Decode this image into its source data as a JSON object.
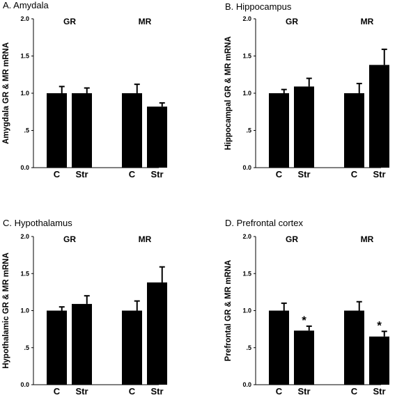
{
  "chart_data": [
    {
      "type": "bar",
      "title": "A. Amydala",
      "ylabel": "Amygdala GR & MR mRNA",
      "ylim": [
        0,
        2.0
      ],
      "yticks": [
        "0.0",
        ".5",
        "1.0",
        "1.5",
        "2.0"
      ],
      "groups": [
        "GR",
        "MR"
      ],
      "categories": [
        "C",
        "Str",
        "C",
        "Str"
      ],
      "values": [
        1.0,
        1.0,
        1.0,
        0.82
      ],
      "errors": [
        0.09,
        0.07,
        0.12,
        0.05
      ],
      "significance": [
        "",
        "",
        "",
        ""
      ]
    },
    {
      "type": "bar",
      "title": "B. Hippocampus",
      "ylabel": "Hippocampal GR & MR mRNA",
      "ylim": [
        0,
        2.0
      ],
      "yticks": [
        "0.0",
        ".5",
        "1.0",
        "1.5",
        "2.0"
      ],
      "groups": [
        "GR",
        "MR"
      ],
      "categories": [
        "C",
        "Str",
        "C",
        "Str"
      ],
      "values": [
        1.0,
        1.09,
        1.0,
        1.38
      ],
      "errors": [
        0.05,
        0.11,
        0.13,
        0.21
      ],
      "significance": [
        "",
        "",
        "",
        ""
      ]
    },
    {
      "type": "bar",
      "title": "C. Hypothalamus",
      "ylabel": "Hypothalamic GR & MR mRNA",
      "ylim": [
        0,
        2.0
      ],
      "yticks": [
        "0.0",
        ".5",
        "1.0",
        "1.5",
        "2.0"
      ],
      "groups": [
        "GR",
        "MR"
      ],
      "categories": [
        "C",
        "Str",
        "C",
        "Str"
      ],
      "values": [
        1.0,
        1.09,
        1.0,
        1.38
      ],
      "errors": [
        0.05,
        0.11,
        0.13,
        0.21
      ],
      "significance": [
        "",
        "",
        "",
        ""
      ]
    },
    {
      "type": "bar",
      "title": "D. Prefrontal cortex",
      "ylabel": "Prefrontal GR & MR mRNA",
      "ylim": [
        0,
        2.0
      ],
      "yticks": [
        "0.0",
        ".5",
        "1.0",
        "1.5",
        "2.0"
      ],
      "groups": [
        "GR",
        "MR"
      ],
      "categories": [
        "C",
        "Str",
        "C",
        "Str"
      ],
      "values": [
        1.0,
        0.73,
        1.0,
        0.65
      ],
      "errors": [
        0.1,
        0.06,
        0.12,
        0.07
      ],
      "significance": [
        "",
        "*",
        "",
        "*"
      ]
    }
  ]
}
